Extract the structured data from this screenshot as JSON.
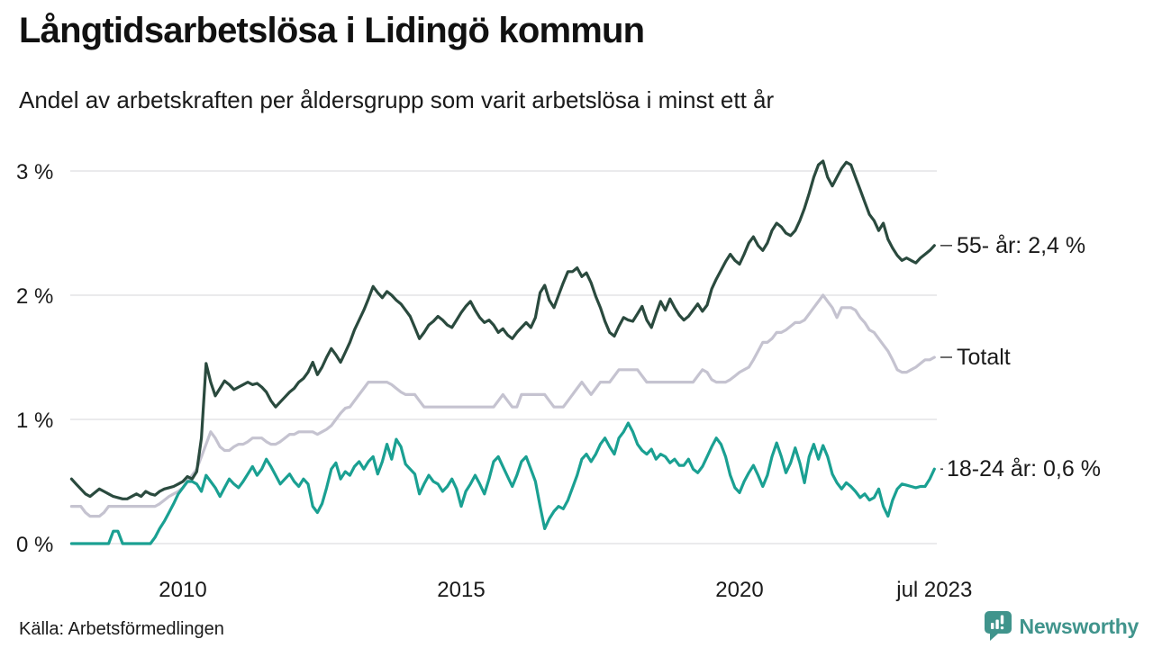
{
  "header": {
    "title": "Långtidsarbetslösa i Lidingö kommun",
    "subtitle": "Andel av arbetskraften per åldersgrupp som varit arbetslösa i minst ett år"
  },
  "footer": {
    "source": "Källa: Arbetsförmedlingen",
    "brand": "Newsworthy"
  },
  "colors": {
    "series_55": "#2a4a3e",
    "series_total": "#c5c3d0",
    "series_18_24": "#1aa092",
    "gridline": "#e3e3e5",
    "text": "#1a1a1a",
    "brand_teal": "#40948c"
  },
  "chart_data": {
    "type": "line",
    "title": "Långtidsarbetslösa i Lidingö kommun",
    "subtitle": "Andel av arbetskraften per åldersgrupp som varit arbetslösa i minst ett år",
    "unit": "%",
    "frequency": "monthly",
    "start": {
      "year": 2008,
      "month": 1
    },
    "end": {
      "year": 2023,
      "month": 7
    },
    "grid": true,
    "legend_position": "right-end-labels",
    "y_axis": {
      "range": [
        0,
        3
      ],
      "ticks": [
        {
          "label": "0 %",
          "value": 0
        },
        {
          "label": "1 %",
          "value": 1
        },
        {
          "label": "2 %",
          "value": 2
        },
        {
          "label": "3 %",
          "value": 3
        }
      ]
    },
    "x_axis": {
      "range_years": [
        2008.0,
        2023.58
      ],
      "ticks": [
        {
          "label": "2010",
          "t": 2010.0
        },
        {
          "label": "2015",
          "t": 2015.0
        },
        {
          "label": "2020",
          "t": 2020.0
        },
        {
          "label": "jul 2023",
          "t": 2023.5
        }
      ]
    },
    "series": [
      {
        "name": "55- år",
        "label": "55- år: 2,4 %",
        "end_value": 2.4,
        "color": "#2a4a3e",
        "values": [
          0.52,
          0.48,
          0.44,
          0.4,
          0.38,
          0.41,
          0.44,
          0.42,
          0.4,
          0.38,
          0.37,
          0.36,
          0.36,
          0.38,
          0.4,
          0.38,
          0.42,
          0.4,
          0.39,
          0.42,
          0.44,
          0.45,
          0.46,
          0.48,
          0.5,
          0.54,
          0.52,
          0.58,
          0.85,
          1.45,
          1.3,
          1.19,
          1.25,
          1.31,
          1.28,
          1.24,
          1.26,
          1.28,
          1.3,
          1.28,
          1.29,
          1.26,
          1.22,
          1.15,
          1.1,
          1.14,
          1.18,
          1.22,
          1.25,
          1.3,
          1.33,
          1.38,
          1.46,
          1.36,
          1.42,
          1.5,
          1.57,
          1.52,
          1.46,
          1.54,
          1.62,
          1.72,
          1.8,
          1.88,
          1.97,
          2.07,
          2.02,
          1.98,
          2.03,
          2.0,
          1.96,
          1.93,
          1.88,
          1.83,
          1.74,
          1.65,
          1.7,
          1.76,
          1.79,
          1.83,
          1.8,
          1.76,
          1.74,
          1.8,
          1.86,
          1.91,
          1.95,
          1.88,
          1.82,
          1.78,
          1.8,
          1.76,
          1.7,
          1.73,
          1.68,
          1.65,
          1.7,
          1.74,
          1.78,
          1.74,
          1.82,
          2.02,
          2.08,
          1.96,
          1.9,
          2.0,
          2.1,
          2.19,
          2.19,
          2.22,
          2.15,
          2.18,
          2.1,
          1.99,
          1.9,
          1.79,
          1.7,
          1.67,
          1.75,
          1.82,
          1.8,
          1.79,
          1.85,
          1.91,
          1.8,
          1.74,
          1.85,
          1.95,
          1.88,
          1.97,
          1.9,
          1.84,
          1.8,
          1.83,
          1.88,
          1.93,
          1.87,
          1.92,
          2.05,
          2.13,
          2.2,
          2.27,
          2.33,
          2.28,
          2.25,
          2.33,
          2.42,
          2.47,
          2.4,
          2.36,
          2.42,
          2.52,
          2.58,
          2.55,
          2.5,
          2.48,
          2.52,
          2.6,
          2.7,
          2.82,
          2.95,
          3.05,
          3.08,
          2.95,
          2.88,
          2.95,
          3.02,
          3.07,
          3.05,
          2.95,
          2.85,
          2.75,
          2.65,
          2.6,
          2.52,
          2.58,
          2.45,
          2.38,
          2.32,
          2.28,
          2.3,
          2.28,
          2.26,
          2.3,
          2.33,
          2.36,
          2.4
        ]
      },
      {
        "name": "Totalt",
        "label": "Totalt",
        "end_value": 1.5,
        "color": "#c5c3d0",
        "values": [
          0.3,
          0.3,
          0.3,
          0.25,
          0.22,
          0.22,
          0.22,
          0.25,
          0.3,
          0.3,
          0.3,
          0.3,
          0.3,
          0.3,
          0.3,
          0.3,
          0.3,
          0.3,
          0.3,
          0.32,
          0.35,
          0.38,
          0.4,
          0.42,
          0.45,
          0.5,
          0.55,
          0.6,
          0.7,
          0.8,
          0.9,
          0.85,
          0.78,
          0.75,
          0.75,
          0.78,
          0.8,
          0.8,
          0.82,
          0.85,
          0.85,
          0.85,
          0.82,
          0.8,
          0.8,
          0.82,
          0.85,
          0.88,
          0.88,
          0.9,
          0.9,
          0.9,
          0.9,
          0.88,
          0.9,
          0.92,
          0.95,
          1.0,
          1.05,
          1.09,
          1.1,
          1.15,
          1.2,
          1.25,
          1.3,
          1.3,
          1.3,
          1.3,
          1.3,
          1.28,
          1.25,
          1.22,
          1.2,
          1.2,
          1.2,
          1.15,
          1.1,
          1.1,
          1.1,
          1.1,
          1.1,
          1.1,
          1.1,
          1.1,
          1.1,
          1.1,
          1.1,
          1.1,
          1.1,
          1.1,
          1.1,
          1.1,
          1.15,
          1.2,
          1.15,
          1.1,
          1.1,
          1.2,
          1.2,
          1.2,
          1.2,
          1.2,
          1.2,
          1.15,
          1.1,
          1.1,
          1.1,
          1.15,
          1.2,
          1.25,
          1.3,
          1.25,
          1.2,
          1.25,
          1.3,
          1.3,
          1.3,
          1.35,
          1.4,
          1.4,
          1.4,
          1.4,
          1.4,
          1.35,
          1.3,
          1.3,
          1.3,
          1.3,
          1.3,
          1.3,
          1.3,
          1.3,
          1.3,
          1.3,
          1.3,
          1.35,
          1.4,
          1.38,
          1.32,
          1.3,
          1.3,
          1.3,
          1.32,
          1.35,
          1.38,
          1.4,
          1.42,
          1.48,
          1.55,
          1.62,
          1.62,
          1.65,
          1.7,
          1.7,
          1.72,
          1.75,
          1.78,
          1.78,
          1.8,
          1.85,
          1.9,
          1.95,
          2.0,
          1.95,
          1.9,
          1.82,
          1.9,
          1.9,
          1.9,
          1.88,
          1.82,
          1.78,
          1.72,
          1.7,
          1.65,
          1.6,
          1.55,
          1.48,
          1.4,
          1.38,
          1.38,
          1.4,
          1.42,
          1.45,
          1.48,
          1.48,
          1.5
        ]
      },
      {
        "name": "18-24 år",
        "label": "18-24 år: 0,6 %",
        "end_value": 0.6,
        "color": "#1aa092",
        "values": [
          0.0,
          0.0,
          0.0,
          0.0,
          0.0,
          0.0,
          0.0,
          0.0,
          0.0,
          0.1,
          0.1,
          0.0,
          0.0,
          0.0,
          0.0,
          0.0,
          0.0,
          0.0,
          0.05,
          0.12,
          0.18,
          0.25,
          0.32,
          0.4,
          0.45,
          0.5,
          0.5,
          0.48,
          0.42,
          0.55,
          0.5,
          0.45,
          0.38,
          0.45,
          0.52,
          0.48,
          0.45,
          0.5,
          0.56,
          0.62,
          0.55,
          0.6,
          0.68,
          0.62,
          0.55,
          0.48,
          0.52,
          0.56,
          0.5,
          0.46,
          0.52,
          0.48,
          0.3,
          0.25,
          0.32,
          0.45,
          0.6,
          0.65,
          0.52,
          0.58,
          0.55,
          0.62,
          0.66,
          0.6,
          0.66,
          0.7,
          0.56,
          0.66,
          0.8,
          0.68,
          0.84,
          0.78,
          0.64,
          0.6,
          0.56,
          0.4,
          0.48,
          0.55,
          0.5,
          0.48,
          0.42,
          0.46,
          0.52,
          0.44,
          0.3,
          0.42,
          0.48,
          0.55,
          0.48,
          0.4,
          0.52,
          0.66,
          0.7,
          0.62,
          0.54,
          0.46,
          0.55,
          0.66,
          0.7,
          0.6,
          0.5,
          0.3,
          0.12,
          0.2,
          0.26,
          0.3,
          0.28,
          0.35,
          0.45,
          0.55,
          0.68,
          0.72,
          0.66,
          0.72,
          0.8,
          0.85,
          0.78,
          0.72,
          0.85,
          0.9,
          0.97,
          0.9,
          0.8,
          0.75,
          0.72,
          0.76,
          0.68,
          0.72,
          0.7,
          0.65,
          0.68,
          0.63,
          0.63,
          0.68,
          0.6,
          0.57,
          0.62,
          0.7,
          0.78,
          0.85,
          0.8,
          0.7,
          0.55,
          0.45,
          0.41,
          0.5,
          0.57,
          0.63,
          0.55,
          0.46,
          0.55,
          0.7,
          0.81,
          0.7,
          0.57,
          0.65,
          0.77,
          0.65,
          0.49,
          0.7,
          0.8,
          0.68,
          0.79,
          0.7,
          0.56,
          0.49,
          0.44,
          0.49,
          0.46,
          0.42,
          0.37,
          0.4,
          0.35,
          0.37,
          0.44,
          0.3,
          0.22,
          0.35,
          0.44,
          0.48,
          0.47,
          0.46,
          0.45,
          0.46,
          0.46,
          0.52,
          0.6
        ]
      }
    ]
  }
}
